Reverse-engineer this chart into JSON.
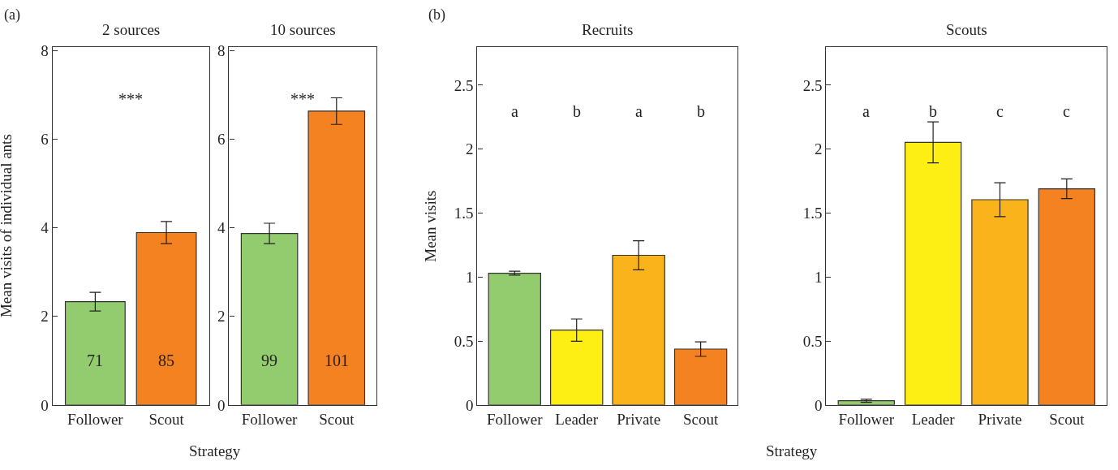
{
  "chart_data": [
    {
      "type": "bar",
      "title": "2 sources",
      "xlabel": "Strategy",
      "ylabel": "Mean visits of individual ants",
      "categories": [
        "Follower",
        "Scout"
      ],
      "values": [
        2.33,
        3.89
      ],
      "errors": [
        0.21,
        0.25
      ],
      "colors": [
        "#93cc6e",
        "#f58220"
      ],
      "ylim": [
        0,
        8.08
      ],
      "yticks": [
        0,
        2,
        4,
        6,
        8
      ],
      "annotations": [
        "(a)",
        "***",
        "71",
        "85"
      ]
    },
    {
      "type": "bar",
      "title": "10 sources",
      "categories": [
        "Follower",
        "Scout"
      ],
      "values": [
        3.87,
        6.63
      ],
      "errors": [
        0.23,
        0.3
      ],
      "colors": [
        "#93cc6e",
        "#f58220"
      ],
      "ylim": [
        0,
        8.08
      ],
      "yticks": [
        0,
        2,
        4,
        6,
        8
      ],
      "annotations": [
        "***",
        "99",
        "101"
      ]
    },
    {
      "type": "bar",
      "title": "Recruits",
      "xlabel": "Strategy",
      "ylabel": "Mean visits",
      "categories": [
        "Follower",
        "Leader",
        "Private",
        "Scout"
      ],
      "values": [
        1.03,
        0.585,
        1.17,
        0.437
      ],
      "errors": [
        0.015,
        0.087,
        0.113,
        0.057
      ],
      "colors": [
        "#93cc6e",
        "#fdee14",
        "#fbb31b",
        "#f58220"
      ],
      "ylim": [
        0,
        2.8
      ],
      "yticks": [
        0,
        0.5,
        1,
        1.5,
        2,
        2.5
      ],
      "annotations": [
        "(b)",
        "a",
        "b",
        "a",
        "b"
      ]
    },
    {
      "type": "bar",
      "title": "Scouts",
      "categories": [
        "Follower",
        "Leader",
        "Private",
        "Scout"
      ],
      "values": [
        0.033,
        2.053,
        1.605,
        1.69
      ],
      "errors": [
        0.012,
        0.16,
        0.133,
        0.077
      ],
      "colors": [
        "#93cc6e",
        "#fdee14",
        "#fbb31b",
        "#f58220"
      ],
      "ylim": [
        0,
        2.8
      ],
      "yticks": [
        0,
        0.5,
        1,
        1.5,
        2,
        2.5
      ],
      "annotations": [
        "a",
        "b",
        "c",
        "c"
      ]
    }
  ]
}
